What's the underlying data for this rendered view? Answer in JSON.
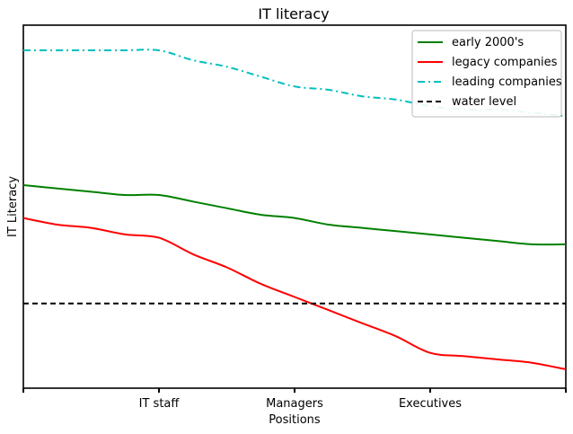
{
  "chart_data": {
    "type": "line",
    "title": "IT literacy",
    "xlabel": "Positions",
    "ylabel": "IT Literacy",
    "xlim": [
      0,
      4
    ],
    "ylim": [
      0,
      100
    ],
    "x": [
      0,
      0.25,
      0.5,
      0.75,
      1,
      1.25,
      1.5,
      1.75,
      2,
      2.25,
      2.5,
      2.75,
      3,
      3.25,
      3.5,
      3.75,
      4
    ],
    "xticks": [
      {
        "x": 0,
        "label": ""
      },
      {
        "x": 1,
        "label": "IT staff"
      },
      {
        "x": 2,
        "label": "Managers"
      },
      {
        "x": 3,
        "label": "Executives"
      },
      {
        "x": 4,
        "label": ""
      }
    ],
    "grid": false,
    "legend_position": "top-right",
    "series": [
      {
        "name": "early 2000's",
        "color": "#008000",
        "dash": "solid",
        "values": [
          56,
          55,
          54,
          53,
          53,
          51,
          49,
          47,
          46,
          44,
          43,
          42,
          41,
          40,
          39,
          38,
          38
        ]
      },
      {
        "name": "legacy companies",
        "color": "#ff0000",
        "dash": "solid",
        "values": [
          46,
          44,
          43,
          41,
          40,
          35,
          31,
          26,
          22,
          18,
          14,
          10,
          5,
          4,
          3,
          2,
          0
        ]
      },
      {
        "name": "leading companies",
        "color": "#00bfbf",
        "dash": "dashdot",
        "values": [
          97,
          97,
          97,
          97,
          97,
          94,
          92,
          89,
          86,
          85,
          83,
          82,
          80,
          79,
          79,
          78,
          77
        ]
      },
      {
        "name": "water level",
        "color": "#000000",
        "dash": "dashed",
        "values": [
          20,
          20,
          20,
          20,
          20,
          20,
          20,
          20,
          20,
          20,
          20,
          20,
          20,
          20,
          20,
          20,
          20
        ]
      }
    ]
  }
}
